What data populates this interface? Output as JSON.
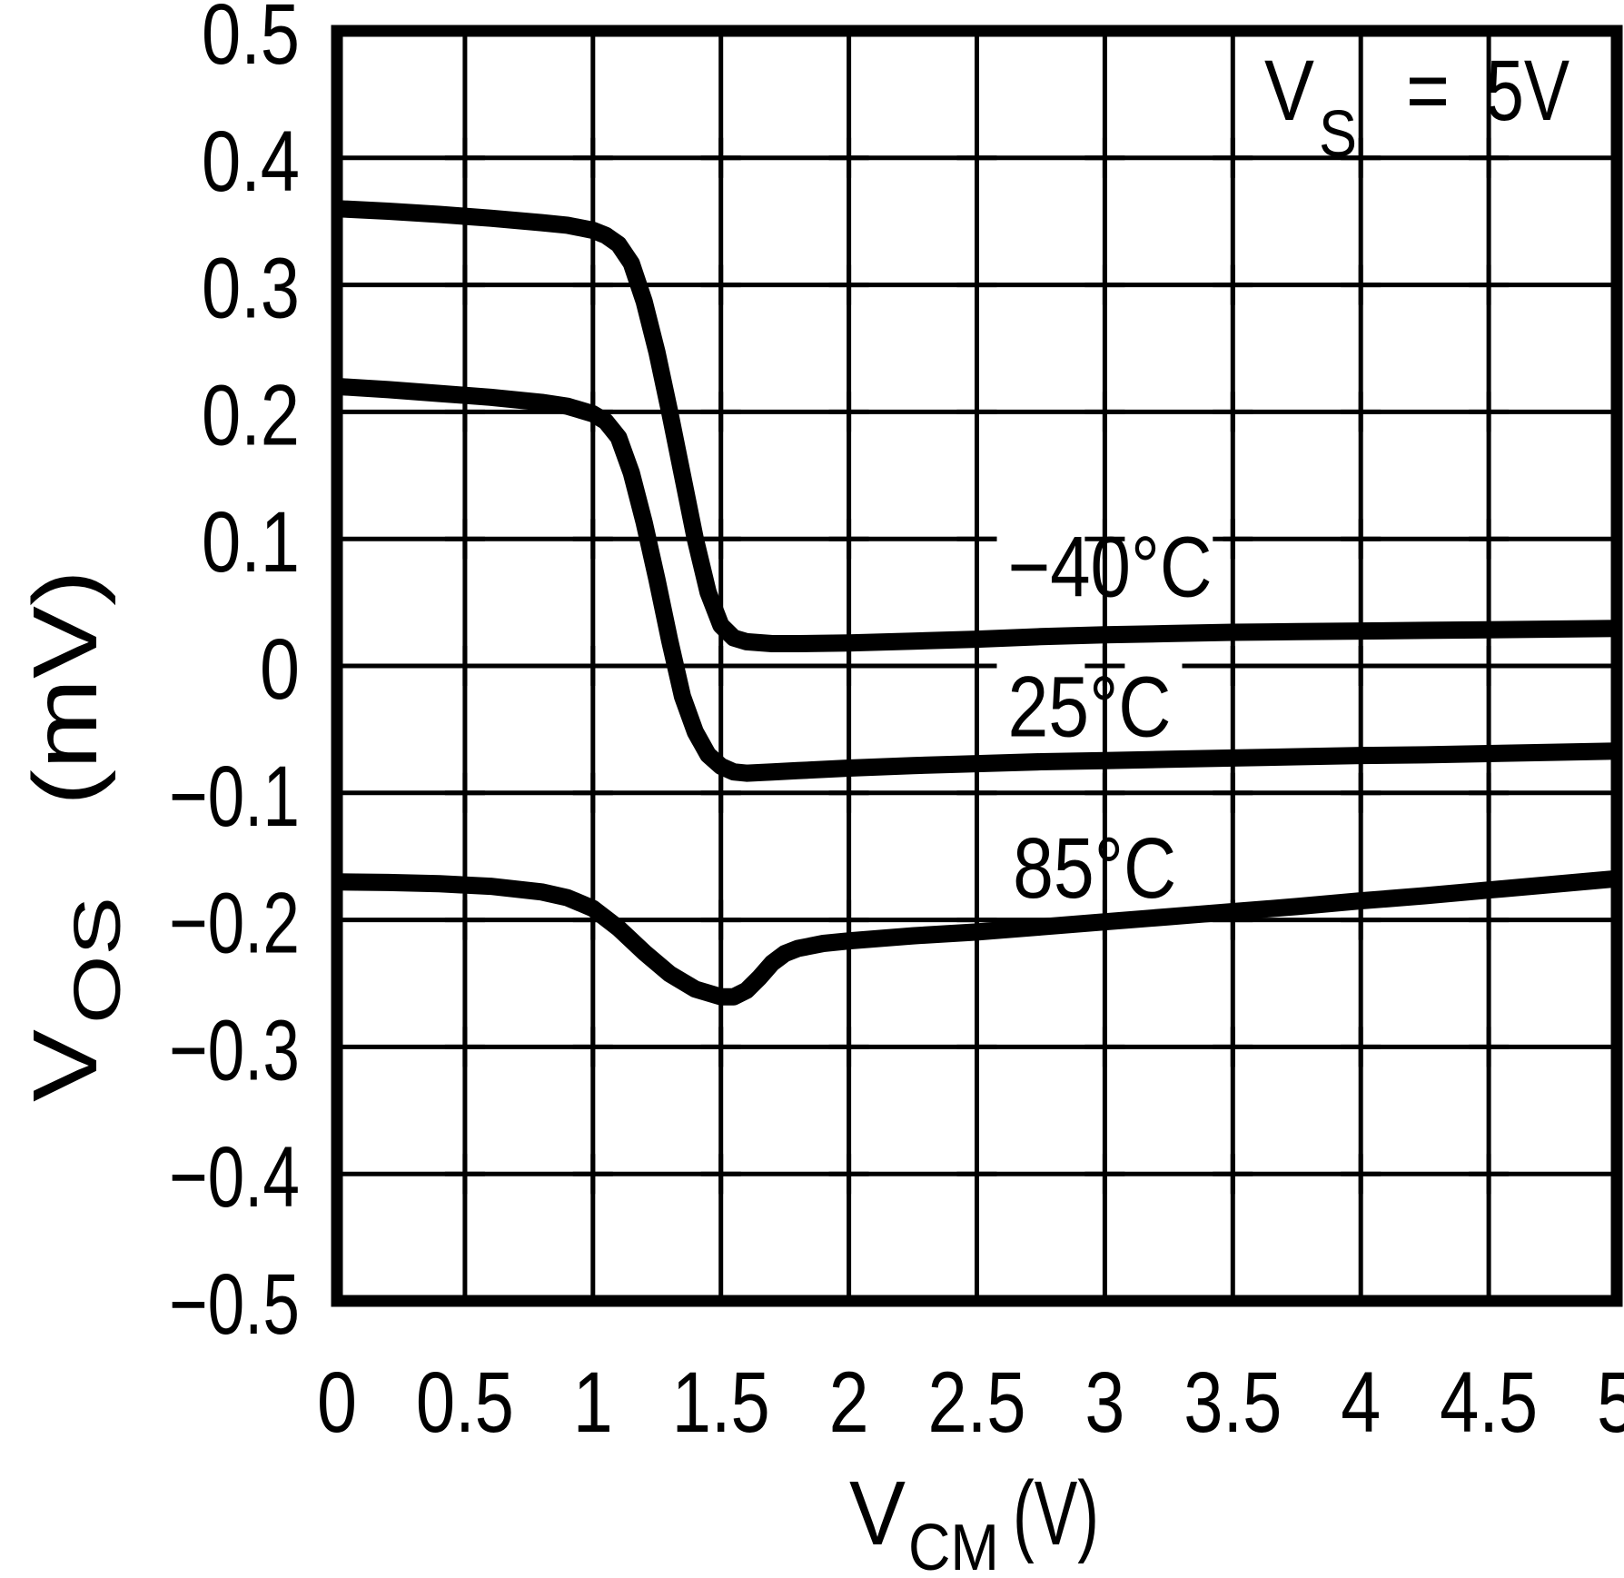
{
  "figure": {
    "background": "#ffffff",
    "ink": "#000000",
    "description": "Input offset voltage vs common-mode voltage datasheet plot"
  },
  "chart_data": {
    "type": "line",
    "title": "",
    "grid": true,
    "legend_position": "inline-labels",
    "annotation": {
      "var": "V",
      "var_sub": "S",
      "operator": "=",
      "value": "5V"
    },
    "xlabel": {
      "var": "V",
      "var_sub": "CM",
      "unit": "(V)"
    },
    "ylabel": {
      "var": "V",
      "var_sub": "OS",
      "unit": "(mV)"
    },
    "xlim": [
      0,
      5
    ],
    "ylim": [
      -0.5,
      0.5
    ],
    "x_ticks": {
      "values": [
        0,
        0.5,
        1,
        1.5,
        2,
        2.5,
        3,
        3.5,
        4,
        4.5,
        5
      ],
      "labels": [
        "0",
        "0.5",
        "1",
        "1.5",
        "2",
        "2.5",
        "3",
        "3.5",
        "4",
        "4.5",
        "5"
      ]
    },
    "y_ticks": {
      "values": [
        0.5,
        0.4,
        0.3,
        0.2,
        0.1,
        0,
        -0.1,
        -0.2,
        -0.3,
        -0.4,
        -0.5
      ],
      "labels": [
        "0.5",
        "0.4",
        "0.3",
        "0.2",
        "0.1",
        "0",
        "−0.1",
        "−0.2",
        "−0.3",
        "−0.4",
        "−0.5"
      ]
    },
    "series": [
      {
        "name": "−40°C",
        "label": {
          "text": "−40°C",
          "x": 3.02,
          "y": 0.079
        },
        "points": [
          [
            0,
            0.36
          ],
          [
            0.2,
            0.358
          ],
          [
            0.4,
            0.3555
          ],
          [
            0.6,
            0.3525
          ],
          [
            0.8,
            0.349
          ],
          [
            0.9,
            0.347
          ],
          [
            1.0,
            0.343
          ],
          [
            1.05,
            0.339
          ],
          [
            1.1,
            0.332
          ],
          [
            1.15,
            0.317
          ],
          [
            1.2,
            0.287
          ],
          [
            1.25,
            0.247
          ],
          [
            1.3,
            0.2
          ],
          [
            1.35,
            0.15
          ],
          [
            1.4,
            0.1
          ],
          [
            1.45,
            0.058
          ],
          [
            1.5,
            0.032
          ],
          [
            1.55,
            0.022
          ],
          [
            1.6,
            0.019
          ],
          [
            1.7,
            0.0175
          ],
          [
            1.8,
            0.0175
          ],
          [
            2.0,
            0.018
          ],
          [
            2.25,
            0.0195
          ],
          [
            2.5,
            0.021
          ],
          [
            2.75,
            0.023
          ],
          [
            3.0,
            0.0245
          ],
          [
            3.25,
            0.0255
          ],
          [
            3.5,
            0.0265
          ],
          [
            3.75,
            0.027
          ],
          [
            4.0,
            0.0275
          ],
          [
            4.25,
            0.028
          ],
          [
            4.5,
            0.0285
          ],
          [
            4.75,
            0.029
          ],
          [
            5.0,
            0.0295
          ]
        ]
      },
      {
        "name": "25°C",
        "label": {
          "text": "25°C",
          "x": 2.94,
          "y": -0.031
        },
        "points": [
          [
            0,
            0.22
          ],
          [
            0.2,
            0.2175
          ],
          [
            0.4,
            0.2145
          ],
          [
            0.6,
            0.2115
          ],
          [
            0.8,
            0.2075
          ],
          [
            0.9,
            0.2045
          ],
          [
            1.0,
            0.1985
          ],
          [
            1.05,
            0.1925
          ],
          [
            1.1,
            0.18
          ],
          [
            1.15,
            0.152
          ],
          [
            1.2,
            0.113
          ],
          [
            1.25,
            0.068
          ],
          [
            1.3,
            0.02
          ],
          [
            1.35,
            -0.024
          ],
          [
            1.4,
            -0.052
          ],
          [
            1.45,
            -0.07
          ],
          [
            1.5,
            -0.079
          ],
          [
            1.55,
            -0.0835
          ],
          [
            1.6,
            -0.0845
          ],
          [
            1.7,
            -0.0835
          ],
          [
            1.8,
            -0.0825
          ],
          [
            2.0,
            -0.0805
          ],
          [
            2.25,
            -0.0785
          ],
          [
            2.5,
            -0.077
          ],
          [
            2.75,
            -0.0755
          ],
          [
            3.0,
            -0.0745
          ],
          [
            3.25,
            -0.0735
          ],
          [
            3.5,
            -0.0725
          ],
          [
            3.75,
            -0.0715
          ],
          [
            4.0,
            -0.0705
          ],
          [
            4.25,
            -0.07
          ],
          [
            4.5,
            -0.069
          ],
          [
            4.75,
            -0.068
          ],
          [
            5.0,
            -0.067
          ]
        ]
      },
      {
        "name": "85°C",
        "label": {
          "text": "85°C",
          "x": 2.96,
          "y": -0.158
        },
        "points": [
          [
            0,
            -0.17
          ],
          [
            0.2,
            -0.1705
          ],
          [
            0.4,
            -0.1715
          ],
          [
            0.6,
            -0.1735
          ],
          [
            0.8,
            -0.178
          ],
          [
            0.9,
            -0.1825
          ],
          [
            1.0,
            -0.191
          ],
          [
            1.1,
            -0.2065
          ],
          [
            1.2,
            -0.2255
          ],
          [
            1.3,
            -0.2425
          ],
          [
            1.4,
            -0.2545
          ],
          [
            1.5,
            -0.2605
          ],
          [
            1.55,
            -0.2605
          ],
          [
            1.6,
            -0.2555
          ],
          [
            1.65,
            -0.2455
          ],
          [
            1.7,
            -0.234
          ],
          [
            1.75,
            -0.2265
          ],
          [
            1.8,
            -0.2225
          ],
          [
            1.9,
            -0.2185
          ],
          [
            2.0,
            -0.2165
          ],
          [
            2.25,
            -0.2125
          ],
          [
            2.5,
            -0.2095
          ],
          [
            2.75,
            -0.2055
          ],
          [
            3.0,
            -0.2015
          ],
          [
            3.25,
            -0.1975
          ],
          [
            3.5,
            -0.1935
          ],
          [
            3.75,
            -0.1895
          ],
          [
            4.0,
            -0.185
          ],
          [
            4.25,
            -0.181
          ],
          [
            4.5,
            -0.1765
          ],
          [
            4.75,
            -0.172
          ],
          [
            5.0,
            -0.1675
          ]
        ]
      }
    ]
  }
}
